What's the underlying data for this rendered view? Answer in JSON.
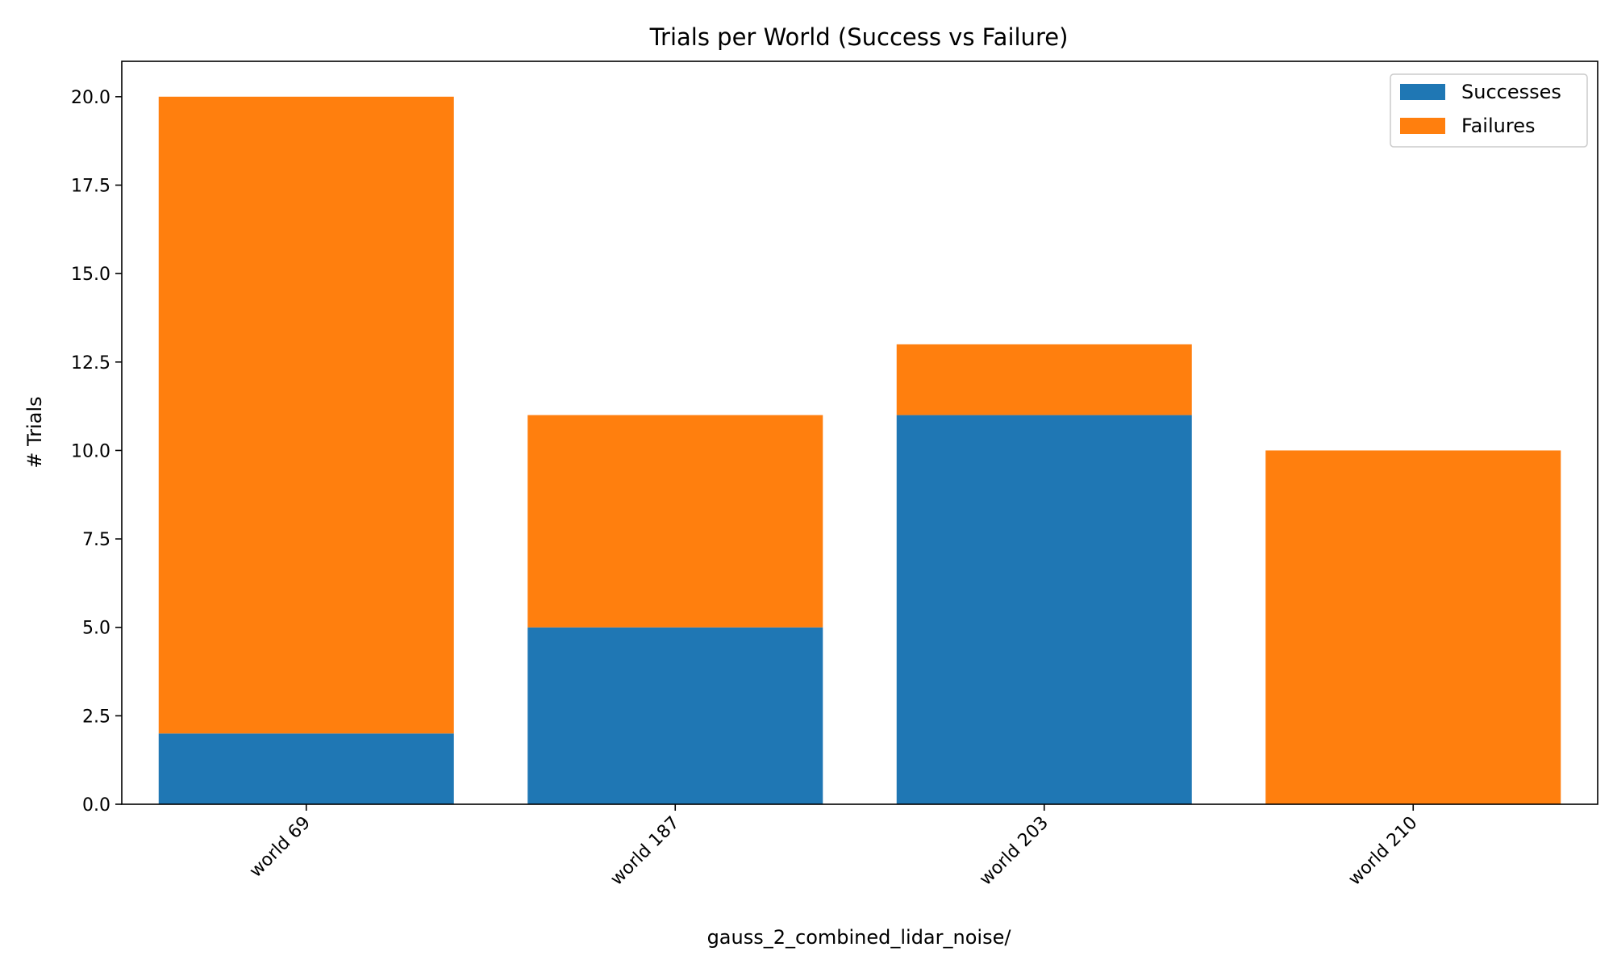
{
  "chart_data": {
    "type": "bar",
    "stacked": true,
    "title": "Trials per World (Success vs Failure)",
    "xlabel": "gauss_2_combined_lidar_noise/",
    "ylabel": "# Trials",
    "categories": [
      "world 69",
      "world 187",
      "world 203",
      "world 210"
    ],
    "series": [
      {
        "name": "Successes",
        "color": "#1f77b4",
        "values": [
          2,
          5,
          11,
          0
        ]
      },
      {
        "name": "Failures",
        "color": "#ff7f0e",
        "values": [
          18,
          6,
          2,
          10
        ]
      }
    ],
    "ylim": [
      0,
      21
    ],
    "yticks": [
      "0.0",
      "2.5",
      "5.0",
      "7.5",
      "10.0",
      "12.5",
      "15.0",
      "17.5",
      "20.0"
    ],
    "ytick_values": [
      0,
      2.5,
      5,
      7.5,
      10,
      12.5,
      15,
      17.5,
      20
    ],
    "grid": false,
    "legend_position": "top-right"
  }
}
